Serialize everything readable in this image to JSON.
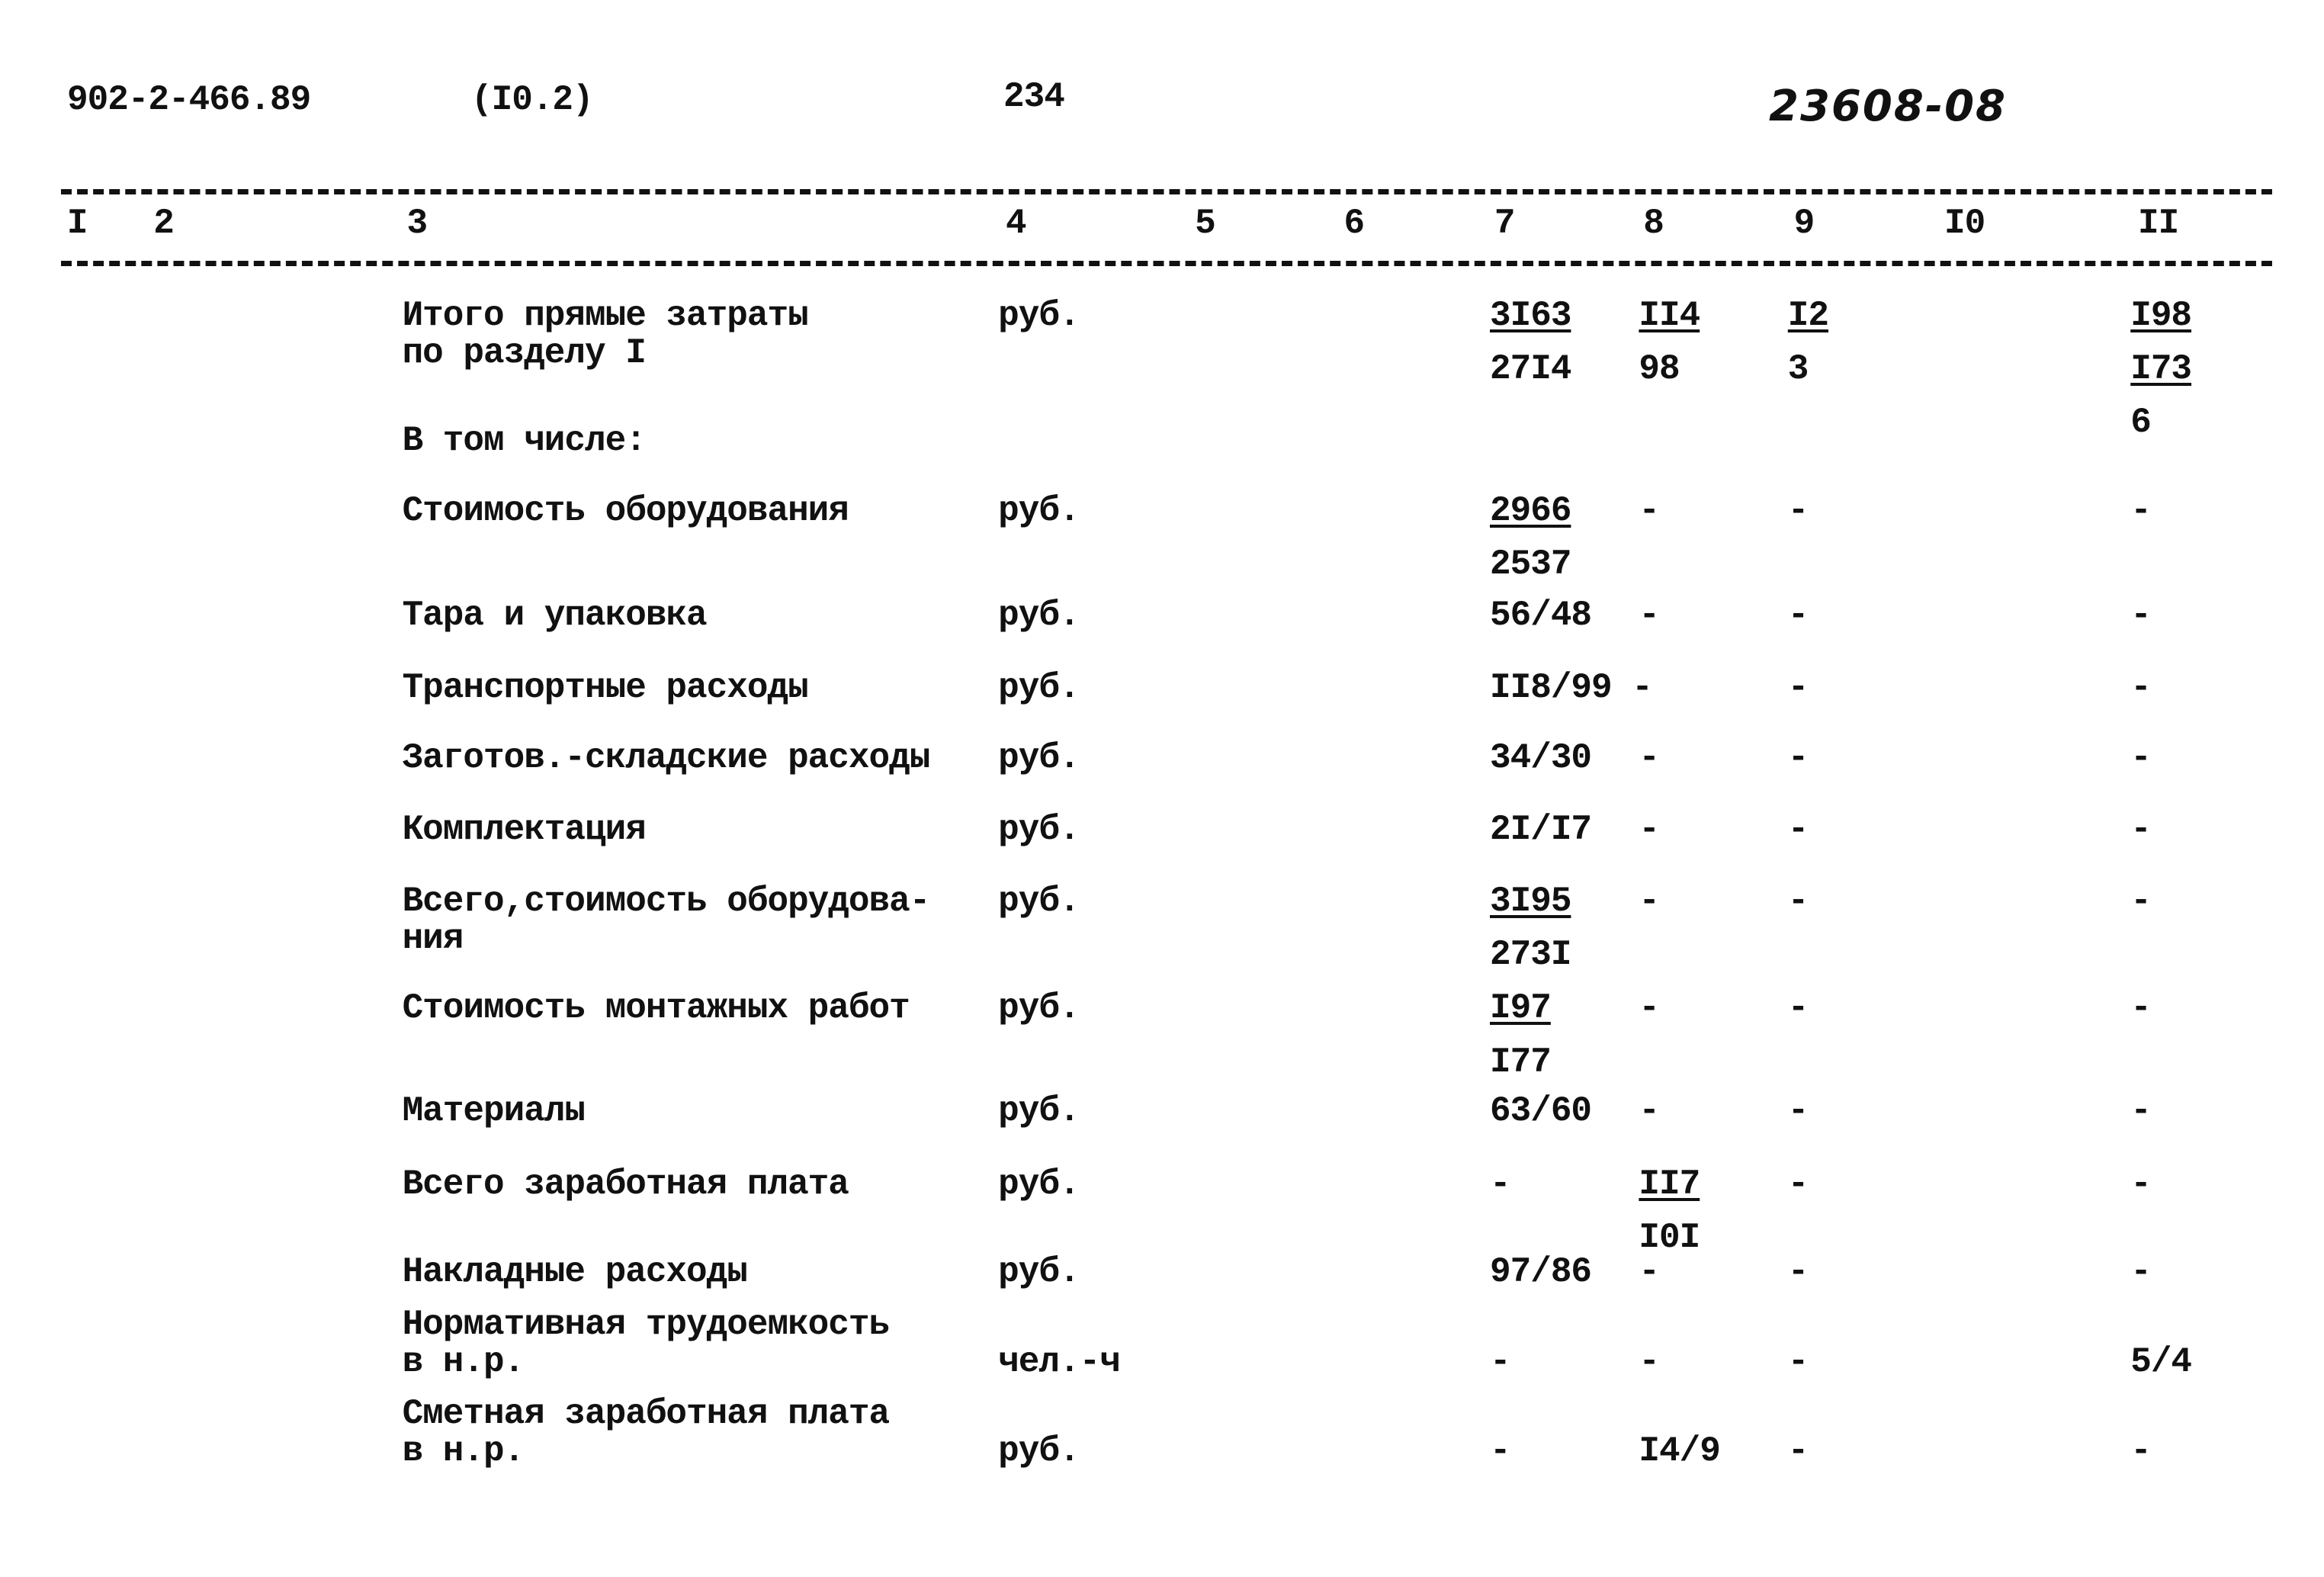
{
  "header": {
    "doc_code": "902-2-466.89",
    "section": "(I0.2)",
    "page_number": "234",
    "handwritten_number": "23608-08"
  },
  "column_numbers": [
    "I",
    "2",
    "3",
    "4",
    "5",
    "6",
    "7",
    "8",
    "9",
    "I0",
    "II"
  ],
  "rows": [
    {
      "label": [
        "Итого прямые затраты",
        "по разделу I"
      ],
      "unit": "руб.",
      "c7": {
        "lines": [
          "3I63",
          "27I4"
        ],
        "underlined": 1
      },
      "c8": {
        "lines": [
          "II4",
          "98"
        ],
        "underlined": 1
      },
      "c9": {
        "lines": [
          "I2",
          "3"
        ],
        "underlined": 1
      },
      "c11": {
        "lines": [
          "I98",
          "I73",
          "6"
        ],
        "underlined": 2
      }
    },
    {
      "label": [
        "В том числе:"
      ]
    },
    {
      "label": [
        "Стоимость оборудования"
      ],
      "unit": "руб.",
      "c7": {
        "lines": [
          "2966",
          "2537"
        ],
        "underlined": 1
      },
      "c8": "-",
      "c9": "-",
      "c11": "-"
    },
    {
      "label": [
        "Тара и упаковка"
      ],
      "unit": "руб.",
      "c7": "56/48",
      "c8": "-",
      "c9": "-",
      "c11": "-"
    },
    {
      "label": [
        "Транспортные расходы"
      ],
      "unit": "руб.",
      "c7": "II8/99 -",
      "c9": "-",
      "c11": "-"
    },
    {
      "label": [
        "Заготов.-складские расходы"
      ],
      "unit": "руб.",
      "c7": "34/30",
      "c8": "-",
      "c9": "-",
      "c11": "-"
    },
    {
      "label": [
        "Комплектация"
      ],
      "unit": "руб.",
      "c7": "2I/I7",
      "c8": "-",
      "c9": "-",
      "c11": "-"
    },
    {
      "label": [
        "Всего,стоимость оборудова-",
        "ния"
      ],
      "unit": "руб.",
      "c7": {
        "lines": [
          "3I95",
          "273I"
        ],
        "underlined": 1
      },
      "c8": "-",
      "c9": "-",
      "c11": "-"
    },
    {
      "label": [
        "Стоимость монтажных работ"
      ],
      "unit": "руб.",
      "c7": {
        "lines": [
          "I97",
          "I77"
        ],
        "underlined": 1
      },
      "c8": "-",
      "c9": "-",
      "c11": "-"
    },
    {
      "label": [
        "Материалы"
      ],
      "unit": "руб.",
      "c7": "63/60",
      "c8": "-",
      "c9": "-",
      "c11": "-"
    },
    {
      "label": [
        "Всего заработная плата"
      ],
      "unit": "руб.",
      "c7": "-",
      "c8": {
        "lines": [
          "II7",
          "I0I"
        ],
        "underlined": 1
      },
      "c9": "-",
      "c11": "-"
    },
    {
      "label": [
        "Накладные расходы"
      ],
      "unit": "руб.",
      "c7": "97/86",
      "c8": "-",
      "c9": "-",
      "c11": "-"
    },
    {
      "label": [
        "Нормативная трудоемкость",
        "в н.р."
      ],
      "unit": "чел.-ч",
      "c7": "-",
      "c8": "-",
      "c9": "-",
      "c11": "5/4"
    },
    {
      "label": [
        "Сметная заработная плата",
        "в н.р."
      ],
      "unit": "руб.",
      "c7": "-",
      "c8": "I4/9",
      "c9": "-",
      "c11": "-"
    }
  ]
}
